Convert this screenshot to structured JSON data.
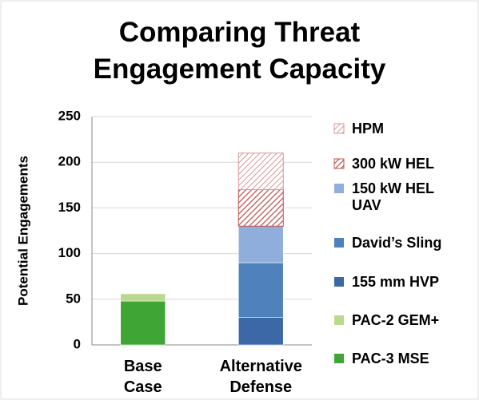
{
  "chart_data": {
    "type": "stacked-bar",
    "title": "Comparing Threat Engagement Capacity",
    "y_label": "Potential Engagements",
    "categories": [
      "Base Case",
      "Alternative Defense"
    ],
    "series": [
      {
        "name": "PAC-3 MSE",
        "color": "#3fa535",
        "values": [
          48,
          0
        ]
      },
      {
        "name": "PAC-2 GEM+",
        "color": "#b9d98e",
        "values": [
          8,
          0
        ]
      },
      {
        "name": "155 mm HVP",
        "color": "#3c68a8",
        "values": [
          0,
          30
        ]
      },
      {
        "name": "David’s Sling",
        "color": "#4f81bd",
        "values": [
          0,
          60
        ]
      },
      {
        "name": "150 kW HEL UAV",
        "color": "#8faedb",
        "values": [
          0,
          40
        ]
      },
      {
        "name": "300 kW HEL",
        "color": "#c0504d",
        "pattern": "hatch",
        "values": [
          0,
          40
        ]
      },
      {
        "name": "HPM",
        "color": "#d99694",
        "pattern": "hatch",
        "values": [
          0,
          40
        ]
      }
    ],
    "ylim": [
      0,
      250
    ],
    "yticks": [
      0,
      50,
      100,
      150,
      200,
      250
    ],
    "grid": true
  }
}
